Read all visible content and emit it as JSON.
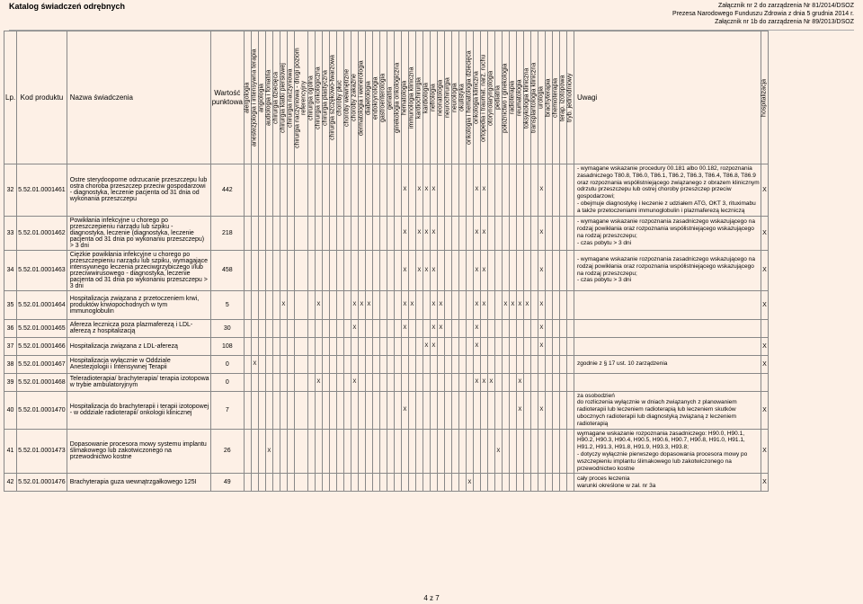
{
  "header": {
    "title": "Katalog świadczeń odrębnych",
    "r1": "Załącznik nr 2 do zarządzenia Nr 81/2014/DSOZ",
    "r2": "Prezesa Narodowego Funduszu Zdrowia z dnia 5 grudnia 2014 r.",
    "r3": "Załącznik nr 1b do zarządzenia Nr 89/2013/DSOZ"
  },
  "columns": {
    "lp": "Lp.",
    "code": "Kod produktu",
    "name": "Nazwa świadczenia",
    "pts": "Wartość punktowa",
    "uwagi": "Uwagi",
    "hosp": "hospitalizacja"
  },
  "depts": [
    "alergologia",
    "anestezjologia i intensywna terapia",
    "angiologia",
    "audiologia i foniatria",
    "chirurgia dziecięca",
    "chirurgia klatki piersiowej",
    "chirurgia naczyniowa",
    "chirurgia naczyniowa - drugi poziom referencyjny",
    "chirurgia ogólna",
    "chirurgia onkologiczna",
    "chirurgia plastyczna",
    "chirurgia szczękowo-twarzowa",
    "choroby płuc",
    "choroby wewnętrzne",
    "choroby zakaźne",
    "dermatologia i wenerologia",
    "diabetologia",
    "endokrynologia",
    "gastroenterologia",
    "geriatria",
    "ginekologia onkologiczna",
    "hematologia",
    "immunologia kliniczna",
    "kardiochirurgia",
    "kardiologia",
    "nefrologia",
    "neonatologia",
    "neurochirurgia",
    "neurologia",
    "okulistyka",
    "onkologia i hematologia dziecięca",
    "onkologia kliniczna",
    "ortopedia i traumat. narz. ruchu",
    "otorynolaryngologia",
    "pediatria",
    "położnictwo i ginekologia",
    "radioterapia",
    "reumatologia",
    "toksykologia kliniczna",
    "transplantologia kliniczna",
    "urologia",
    "brachyterapia",
    "chemioterapia",
    "terap. izotopowa",
    "tryb. jednodniowy"
  ],
  "rows": [
    {
      "lp": "32",
      "code": "5.52.01.0001461",
      "name": "Ostre sterydooporne odrzucanie przeszczepu lub ostra choroba przeszczep przeciw gospodarzowi - diagnostyka, leczenie pacjenta od 31 dnia od wykonania przeszczepu",
      "pts": "442",
      "marks": [
        21,
        23,
        24,
        25,
        31,
        32,
        40
      ],
      "hosp": "X",
      "uwagi": "- wymagane wskazanie procedury 00.181 albo 00.182, rozpoznania zasadniczego T80.8, T86.0, T86.1, T86.2, T86.3, T86.4, T86.8, T86.9 oraz rozpoznania współistniejącego związanego z obrazem klinicznym odrzutu przeszczepu lub ostrej choroby przeszczep przeciw gospodarzowi;\n- obejmuje diagnostykę i leczenie z udziałem ATG, OKT 3, rituximabu a także przetoczeniami immunoglobulin i plazmaferezą leczniczą",
      "rowclass": "tall"
    },
    {
      "lp": "33",
      "code": "5.52.01.0001462",
      "name": "Powikłania infekcyjne u chorego po przeszczepieniu narządu lub szpiku - diagnostyka, leczenie (diagnostyka, leczenie pacjenta od 31 dnia po wykonaniu przeszczepu) > 3 dni",
      "pts": "218",
      "marks": [
        21,
        23,
        24,
        25,
        31,
        32,
        40
      ],
      "hosp": "X",
      "uwagi": "- wymagane wskazanie rozpoznania zasadniczego wskazującego na rodzaj powikłania oraz rozpoznania współistniejącego wskazującego na rodzaj przeszczepu;\n- czas pobytu > 3 dni",
      "rowclass": "med"
    },
    {
      "lp": "34",
      "code": "5.52.01.0001463",
      "name": "Ciężkie powikłania infekcyjne u chorego po przeszczepieniu narządu lub szpiku, wymagające intensywnego leczenia przeciwgrzybiczego i/lub przeciwwirusowego - diagnostyka, leczenie pacjenta od 31 dnia po wykonaniu przeszczepu > 3 dni",
      "pts": "458",
      "marks": [
        21,
        23,
        24,
        25,
        31,
        32,
        40
      ],
      "hosp": "X",
      "uwagi": "- wymagane wskazanie rozpoznania zasadniczego wskazującego na rodzaj powikłania oraz rozpoznania współistniejącego wskazującego na rodzaj przeszczepu;\n- czas pobytu > 3 dni",
      "rowclass": "tall"
    },
    {
      "lp": "35",
      "code": "5.52.01.0001464",
      "name": "Hospitalizacja związana z przetoczeniem krwi, produktów krwiopochodnych w tym immunoglobulin",
      "pts": "5",
      "marks": [
        5,
        9,
        14,
        15,
        16,
        21,
        22,
        25,
        26,
        31,
        32,
        35,
        36,
        37,
        38,
        40
      ],
      "hosp": "X",
      "uwagi": "",
      "rowclass": ""
    },
    {
      "lp": "36",
      "code": "5.52.01.0001465",
      "name": "Afereza lecznicza poza plazmaferezą i LDL-aferezą z hospitalizacją",
      "pts": "30",
      "marks": [
        14,
        21,
        25,
        26,
        31,
        40
      ],
      "hosp": "",
      "uwagi": "",
      "rowclass": "short"
    },
    {
      "lp": "37",
      "code": "5.52.01.0001466",
      "name": "Hospitalizacja związana z LDL-aferezą",
      "pts": "108",
      "marks": [
        24,
        25,
        31,
        40
      ],
      "hosp": "X",
      "uwagi": "",
      "rowclass": "short"
    },
    {
      "lp": "38",
      "code": "5.52.01.0001467",
      "name": "Hospitalizacja wyłącznie w Oddziale Anestezjologii i Intensywnej Terapii",
      "pts": "0",
      "marks": [
        1
      ],
      "hosp": "X",
      "uwagi": "zgodnie z § 17 ust. 10 zarządzenia",
      "rowclass": "short"
    },
    {
      "lp": "39",
      "code": "5.52.01.0001468",
      "name": "Teleradioterapia/ brachyterapia/ terapia izotopowa w trybie ambulatoryjnym",
      "pts": "0",
      "marks": [
        9,
        14,
        31,
        32,
        33,
        37
      ],
      "hosp": "",
      "uwagi": "",
      "rowclass": "short"
    },
    {
      "lp": "40",
      "code": "5.52.01.0001470",
      "name": "Hospitalizacja do brachyterapii i terapii izotopowej - w oddziale radioterapii/ onkologii klinicznej",
      "pts": "7",
      "marks": [
        21,
        37,
        40
      ],
      "hosp": "X",
      "uwagi": "za osobodzień\ndo rozliczenia wyłącznie w dniach związanych z planowaniem radioterapii lub leczeniem radioterapią lub leczeniem skutków ubocznych radioterapii lub diagnostyką związaną z leczeniem radioterapią",
      "rowclass": "med"
    },
    {
      "lp": "41",
      "code": "5.52.01.0001473",
      "name": "Dopasowanie procesora mowy systemu implantu ślimakowego lub zakotwiczonego na przewodnictwo kostne",
      "pts": "26",
      "marks": [
        3,
        34
      ],
      "hosp": "X",
      "hosp2": "X",
      "uwagi": "wymagane wskazanie rozpoznania zasadniczego: H90.0, H90.1, H90.2, H90.3, H90.4, H90.5, H90.6, H90.7, H90.8, H91.0, H91.1, H91.2, H91.3, H91.8, H91.9, H93.3, H93.8;\n- dotyczy wyłącznie pierwszego dopasowania procesora mowy po wszczepieniu implantu ślimakowego lub zakotwiczonego na przewodnictwo kostne",
      "rowclass": "tall"
    },
    {
      "lp": "42",
      "code": "5.52.01.0001476",
      "name": "Brachyterapia guza wewnątrzgałkowego 125I",
      "pts": "49",
      "marks": [
        30
      ],
      "hosp": "X",
      "uwagi": "cały proces leczenia\nwarunki określone w zał. nr 3a",
      "rowclass": "short"
    }
  ],
  "footer": "4 z 7"
}
